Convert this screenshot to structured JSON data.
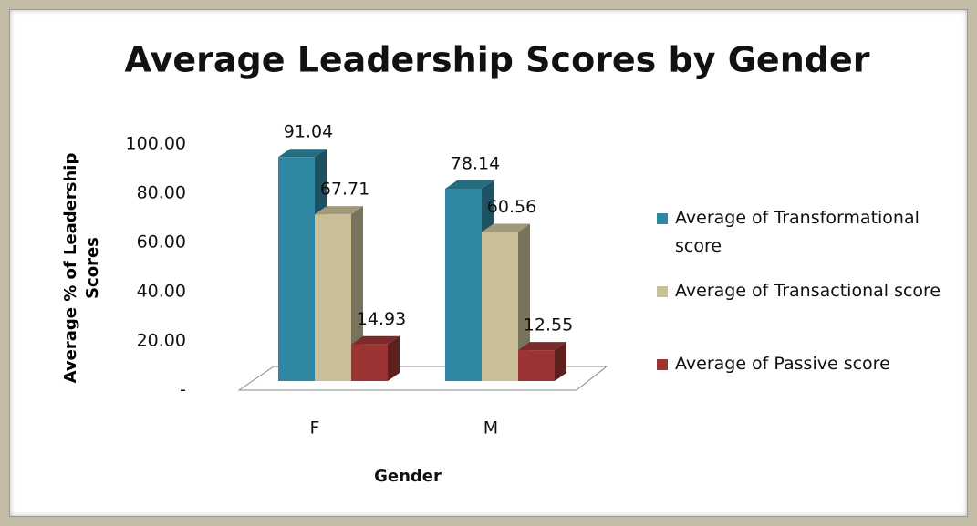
{
  "chart_data": {
    "type": "bar3d",
    "title": "Average Leadership Scores by Gender",
    "x_label": "Gender",
    "y_label": "Average % of Leadership Scores",
    "categories": [
      "F",
      "M"
    ],
    "series": [
      {
        "name": "Average of Transformational score",
        "color": "#2f88a1",
        "values": [
          91.04,
          78.14
        ]
      },
      {
        "name": "Average of Transactional score",
        "color": "#c8bf98",
        "values": [
          67.71,
          60.56
        ]
      },
      {
        "name": "Average of Passive score",
        "color": "#9c3434",
        "values": [
          14.93,
          12.55
        ]
      }
    ],
    "ylim": [
      0,
      100
    ],
    "yticks": [
      {
        "value": 0,
        "label": "-"
      },
      {
        "value": 20,
        "label": "20.00"
      },
      {
        "value": 40,
        "label": "40.00"
      },
      {
        "value": 60,
        "label": "60.00"
      },
      {
        "value": 80,
        "label": "80.00"
      },
      {
        "value": 100,
        "label": "100.00"
      }
    ],
    "legend": "right"
  }
}
